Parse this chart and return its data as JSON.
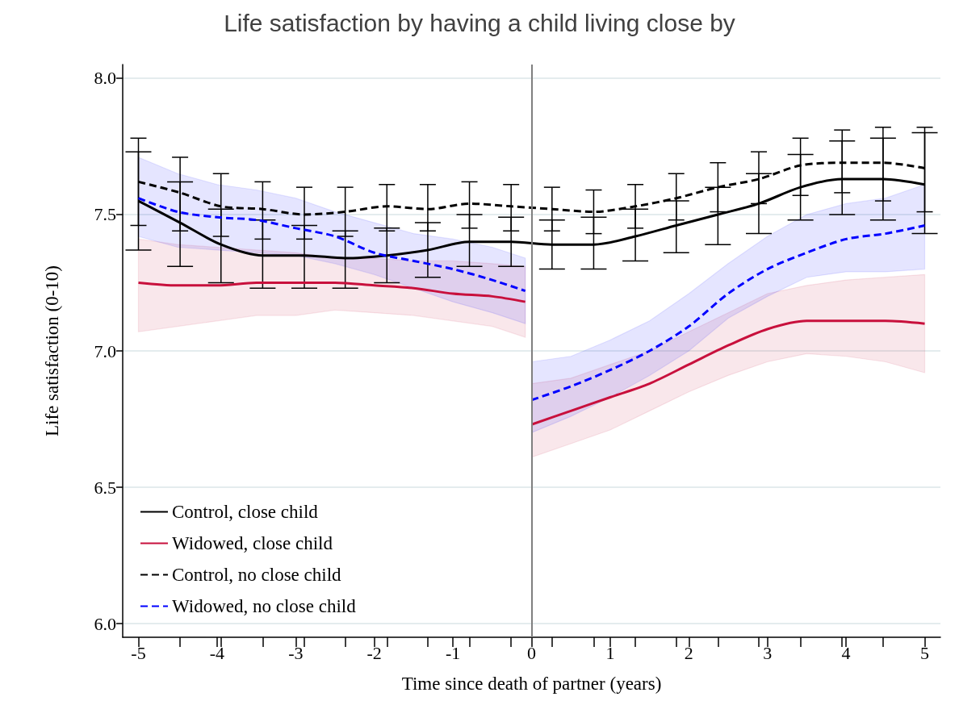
{
  "chart_data": {
    "type": "line",
    "title": "Life satisfaction by having a child living close by",
    "xlabel": "Time since death of partner (years)",
    "ylabel": "Life satisfaction (0-10)",
    "xlim": [
      -5.2,
      5.2
    ],
    "ylim": [
      5.95,
      8.05
    ],
    "xticks": [
      -5,
      {
        "value": -4.47,
        "label": null
      },
      -4,
      {
        "value": -3.95,
        "label": null
      },
      {
        "value": -3.42,
        "label": null
      },
      -3,
      {
        "value": -2.89,
        "label": null
      },
      {
        "value": -2.37,
        "label": null
      },
      -2,
      {
        "value": -1.84,
        "label": null
      },
      {
        "value": -1.32,
        "label": null
      },
      -1,
      {
        "value": -0.79,
        "label": null
      },
      {
        "value": -0.26,
        "label": null
      },
      0,
      {
        "value": 0.26,
        "label": null
      },
      {
        "value": 0.79,
        "label": null
      },
      1,
      {
        "value": 1.32,
        "label": null
      },
      {
        "value": 1.84,
        "label": null
      },
      2,
      {
        "value": 2.37,
        "label": null
      },
      {
        "value": 2.89,
        "label": null
      },
      3,
      {
        "value": 3.42,
        "label": null
      },
      {
        "value": 3.95,
        "label": null
      },
      4,
      {
        "value": 4.47,
        "label": null
      },
      5
    ],
    "yticks": [
      {
        "value": 6,
        "label": "6.0"
      },
      {
        "value": 6.5,
        "label": "6.5"
      },
      {
        "value": 7,
        "label": "7.0"
      },
      {
        "value": 7.5,
        "label": "7.5"
      },
      {
        "value": 8,
        "label": "8.0"
      }
    ],
    "grid": "y",
    "legend": "bottom left",
    "marker": "none",
    "ref_lines": [
      {
        "axis": "x",
        "value": 0,
        "color": "#808080"
      }
    ],
    "series": [
      {
        "name": "Control, close child",
        "color": "#000000",
        "line_style": "solid",
        "x": [
          -5,
          -4.47,
          -3.95,
          -3.42,
          -2.89,
          -2.37,
          -1.84,
          -1.32,
          -0.79,
          -0.26,
          0.26,
          0.79,
          1.32,
          1.84,
          2.37,
          2.89,
          3.42,
          3.95,
          4.47,
          5
        ],
        "values": [
          7.55,
          7.47,
          7.39,
          7.35,
          7.35,
          7.34,
          7.35,
          7.37,
          7.4,
          7.4,
          7.39,
          7.39,
          7.42,
          7.46,
          7.5,
          7.54,
          7.6,
          7.63,
          7.63,
          7.61
        ],
        "errors": [
          [
            7.37,
            7.73
          ],
          [
            7.31,
            7.62
          ],
          [
            7.25,
            7.52
          ],
          [
            7.23,
            7.48
          ],
          [
            7.23,
            7.46
          ],
          [
            7.23,
            7.44
          ],
          [
            7.25,
            7.45
          ],
          [
            7.27,
            7.47
          ],
          [
            7.31,
            7.5
          ],
          [
            7.31,
            7.49
          ],
          [
            7.3,
            7.48
          ],
          [
            7.3,
            7.49
          ],
          [
            7.33,
            7.52
          ],
          [
            7.36,
            7.55
          ],
          [
            7.39,
            7.6
          ],
          [
            7.43,
            7.65
          ],
          [
            7.48,
            7.72
          ],
          [
            7.5,
            7.77
          ],
          [
            7.48,
            7.78
          ],
          [
            7.43,
            7.8
          ]
        ]
      },
      {
        "name": "Widowed, close child",
        "color": "#c8103c",
        "line_style": "solid",
        "x": [
          -5,
          -4.5,
          -4,
          -3.5,
          -3,
          -2.5,
          -2,
          -1.5,
          -1,
          -0.5,
          -0.08,
          -0.04,
          0,
          0.5,
          1,
          1.5,
          2,
          2.5,
          3,
          3.5,
          4,
          4.5,
          5
        ],
        "values": [
          7.25,
          7.24,
          7.24,
          7.25,
          7.25,
          7.25,
          7.24,
          7.23,
          7.21,
          7.2,
          7.18,
          null,
          6.73,
          6.78,
          6.83,
          6.88,
          6.95,
          7.02,
          7.08,
          7.11,
          7.11,
          7.11,
          7.1
        ],
        "upper": [
          7.41,
          7.39,
          7.38,
          7.37,
          7.36,
          7.34,
          7.34,
          7.33,
          7.33,
          7.32,
          7.31,
          null,
          6.88,
          6.9,
          6.95,
          7.0,
          7.07,
          7.14,
          7.21,
          7.24,
          7.26,
          7.27,
          7.28
        ],
        "lower": [
          7.07,
          7.09,
          7.11,
          7.13,
          7.13,
          7.15,
          7.14,
          7.13,
          7.11,
          7.09,
          7.05,
          null,
          6.61,
          6.66,
          6.71,
          6.78,
          6.85,
          6.91,
          6.96,
          6.99,
          6.98,
          6.96,
          6.92
        ]
      },
      {
        "name": "Control, no close child",
        "color": "#000000",
        "line_style": "dashed",
        "x": [
          -5,
          -4.47,
          -3.95,
          -3.42,
          -2.89,
          -2.37,
          -1.84,
          -1.32,
          -0.79,
          -0.26,
          0.26,
          0.79,
          1.32,
          1.84,
          2.37,
          2.89,
          3.42,
          3.95,
          4.47,
          5
        ],
        "values": [
          7.62,
          7.58,
          7.53,
          7.52,
          7.5,
          7.51,
          7.53,
          7.52,
          7.54,
          7.53,
          7.52,
          7.51,
          7.53,
          7.56,
          7.6,
          7.63,
          7.68,
          7.69,
          7.69,
          7.67
        ],
        "errors": [
          [
            7.46,
            7.78
          ],
          [
            7.44,
            7.71
          ],
          [
            7.42,
            7.65
          ],
          [
            7.41,
            7.62
          ],
          [
            7.41,
            7.6
          ],
          [
            7.42,
            7.6
          ],
          [
            7.44,
            7.61
          ],
          [
            7.44,
            7.61
          ],
          [
            7.45,
            7.62
          ],
          [
            7.44,
            7.61
          ],
          [
            7.44,
            7.6
          ],
          [
            7.43,
            7.59
          ],
          [
            7.45,
            7.61
          ],
          [
            7.48,
            7.65
          ],
          [
            7.51,
            7.69
          ],
          [
            7.54,
            7.73
          ],
          [
            7.57,
            7.78
          ],
          [
            7.58,
            7.81
          ],
          [
            7.55,
            7.82
          ],
          [
            7.51,
            7.82
          ]
        ]
      },
      {
        "name": "Widowed, no close child",
        "color": "#0000ff",
        "line_style": "dashed",
        "x": [
          -5,
          -4.5,
          -4,
          -3.5,
          -3,
          -2.5,
          -2,
          -1.5,
          -1,
          -0.5,
          -0.08,
          -0.04,
          0,
          0.5,
          1,
          1.5,
          2,
          2.5,
          3,
          3.5,
          4,
          4.5,
          5
        ],
        "values": [
          7.56,
          7.51,
          7.49,
          7.48,
          7.45,
          7.42,
          7.36,
          7.33,
          7.3,
          7.26,
          7.22,
          null,
          6.82,
          6.87,
          6.93,
          7.0,
          7.09,
          7.21,
          7.3,
          7.36,
          7.41,
          7.43,
          7.46
        ],
        "upper": [
          7.71,
          7.65,
          7.61,
          7.59,
          7.56,
          7.51,
          7.47,
          7.43,
          7.41,
          7.38,
          7.34,
          null,
          6.96,
          6.98,
          7.04,
          7.11,
          7.21,
          7.32,
          7.42,
          7.5,
          7.54,
          7.56,
          7.61
        ],
        "lower": [
          7.42,
          7.38,
          7.37,
          7.36,
          7.35,
          7.32,
          7.28,
          7.23,
          7.18,
          7.14,
          7.1,
          null,
          6.7,
          6.76,
          6.83,
          6.91,
          7.0,
          7.12,
          7.2,
          7.27,
          7.29,
          7.29,
          7.3
        ]
      }
    ]
  }
}
